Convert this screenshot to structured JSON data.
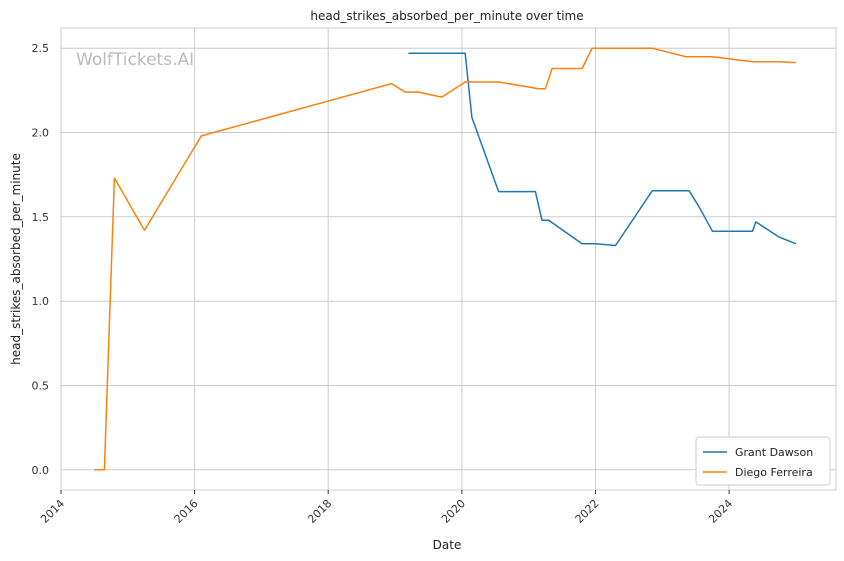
{
  "chart_data": {
    "type": "line",
    "title": "head_strikes_absorbed_per_minute over time",
    "xlabel": "Date",
    "ylabel": "head_strikes_absorbed_per_minute",
    "watermark": "WolfTickets.AI",
    "xlim": [
      2014.0,
      2025.6
    ],
    "ylim": [
      -0.12,
      2.62
    ],
    "x_ticks": [
      2014,
      2016,
      2018,
      2020,
      2022,
      2024
    ],
    "y_ticks": [
      0.0,
      0.5,
      1.0,
      1.5,
      2.0,
      2.5
    ],
    "y_tick_labels": [
      "0.0",
      "0.5",
      "1.0",
      "1.5",
      "2.0",
      "2.5"
    ],
    "grid": true,
    "legend_position": "bottom-right",
    "series": [
      {
        "name": "Grant Dawson",
        "color": "#1f77b4",
        "x": [
          2019.2,
          2020.05,
          2020.15,
          2020.55,
          2021.1,
          2021.2,
          2021.3,
          2021.8,
          2022.0,
          2022.3,
          2022.85,
          2023.4,
          2023.55,
          2023.75,
          2024.35,
          2024.4,
          2024.75,
          2025.0
        ],
        "y": [
          2.47,
          2.47,
          2.09,
          1.65,
          1.65,
          1.48,
          1.48,
          1.34,
          1.34,
          1.33,
          1.655,
          1.655,
          1.56,
          1.415,
          1.415,
          1.47,
          1.38,
          1.34
        ]
      },
      {
        "name": "Diego Ferreira",
        "color": "#ff7f0e",
        "x": [
          2014.5,
          2014.65,
          2014.8,
          2015.25,
          2016.1,
          2018.95,
          2019.15,
          2019.35,
          2019.7,
          2020.05,
          2020.55,
          2021.15,
          2021.25,
          2021.35,
          2021.8,
          2021.95,
          2022.85,
          2023.35,
          2023.75,
          2024.35,
          2024.75,
          2025.0
        ],
        "y": [
          0.0,
          0.0,
          1.73,
          1.42,
          1.98,
          2.29,
          2.24,
          2.24,
          2.21,
          2.3,
          2.3,
          2.26,
          2.26,
          2.38,
          2.38,
          2.5,
          2.5,
          2.45,
          2.45,
          2.42,
          2.42,
          2.415
        ]
      }
    ]
  }
}
